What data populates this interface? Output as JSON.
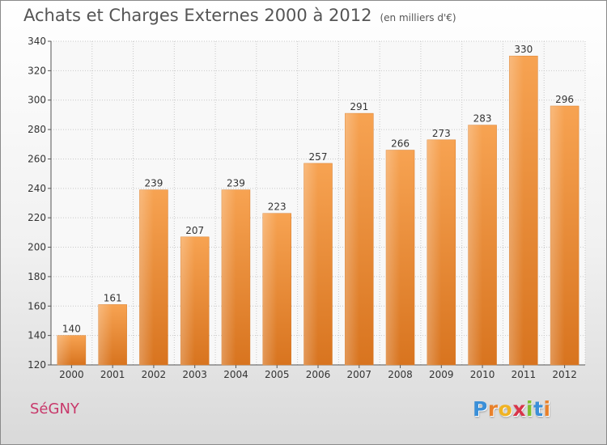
{
  "page": {
    "title": "Achats et Charges Externes 2000 à 2012",
    "subtitle": "(en milliers d'€)",
    "city": "SéGNY",
    "logo": {
      "letters": [
        "P",
        "r",
        "o",
        "x",
        "i",
        "t",
        "i"
      ],
      "colors": [
        "#3a8fd8",
        "#e8812c",
        "#f0b323",
        "#d8354a",
        "#7fbf2e",
        "#3a8fd8",
        "#e8812c"
      ]
    }
  },
  "chart_data": {
    "type": "bar",
    "categories": [
      "2000",
      "2001",
      "2002",
      "2003",
      "2004",
      "2005",
      "2006",
      "2007",
      "2008",
      "2009",
      "2010",
      "2011",
      "2012"
    ],
    "values": [
      140,
      161,
      239,
      207,
      239,
      223,
      257,
      291,
      266,
      273,
      283,
      330,
      296
    ],
    "data_labels": [
      "140",
      "161",
      "239",
      "207",
      "239",
      "223",
      "257",
      "291",
      "266",
      "273",
      "283",
      "330",
      "296"
    ],
    "title": "Achats et Charges Externes 2000 à 2012",
    "subtitle": "(en milliers d'€)",
    "xlabel": "",
    "ylabel": "",
    "ylim": [
      120,
      340
    ],
    "yticks": [
      120,
      140,
      160,
      180,
      200,
      220,
      240,
      260,
      280,
      300,
      320,
      340
    ],
    "grid": true,
    "bar_color": "#f0943a"
  }
}
